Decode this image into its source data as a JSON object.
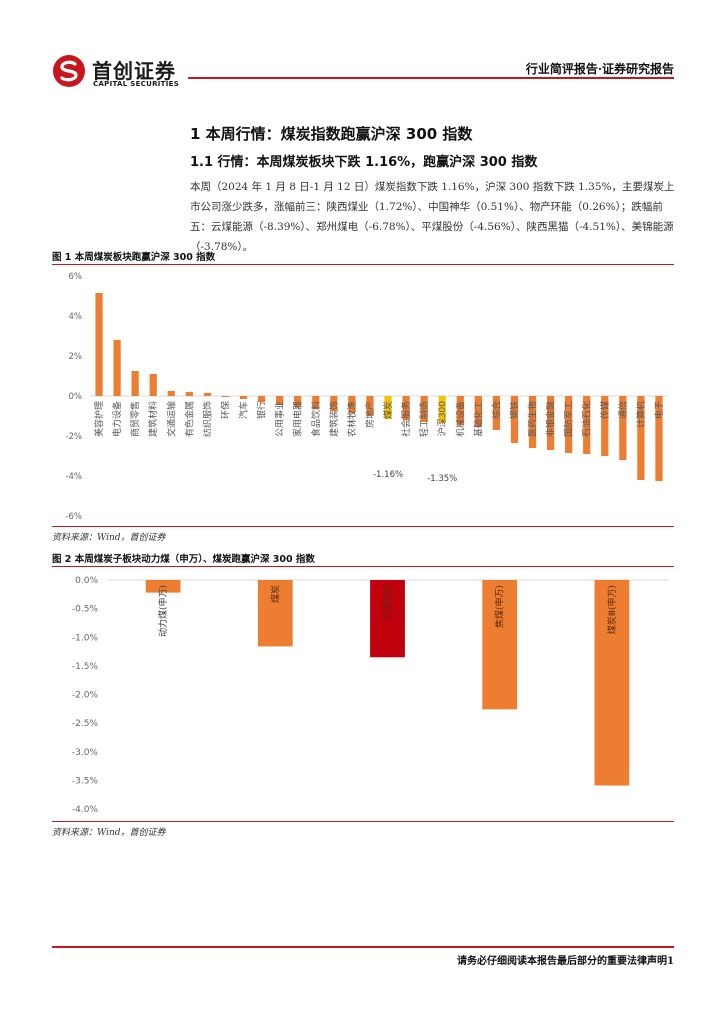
{
  "header": {
    "logo_cn": "首创证券",
    "logo_en": "CAPITAL SECURITIES",
    "report_type": "行业简评报告·证券研究报告",
    "colors": {
      "brand_red": "#c8161d"
    }
  },
  "section": {
    "h1": "1 本周行情：煤炭指数跑赢沪深 300 指数",
    "h2": "1.1 行情：本周煤炭板块下跌 1.16%，跑赢沪深 300 指数",
    "paragraph": "本周（2024 年 1 月 8 日-1 月 12 日）煤炭指数下跌 1.16%，沪深 300 指数下跌 1.35%，主要煤炭上市公司涨少跌多，涨幅前三：陕西煤业（1.72%）、中国神华（0.51%）、物产环能（0.26%）；跌幅前五：云煤能源（-8.39%）、郑州煤电（-6.78%）、平煤股份（-4.56%）、陕西黑猫（-4.51%）、美锦能源（-3.78%）。"
  },
  "figure1": {
    "title": "图 1 本周煤炭板块跑赢沪深 300 指数",
    "source": "资料来源：Wind，首创证券"
  },
  "figure2": {
    "title": "图 2 本周煤炭子板块动力煤（申万）、煤炭跑赢沪深 300 指数",
    "source": "资料来源：Wind，首创证券"
  },
  "chart_data": [
    {
      "type": "bar",
      "ylim": [
        -6,
        6
      ],
      "yticks": [
        "6%",
        "4%",
        "2%",
        "0%",
        "-2%",
        "-4%",
        "-6%"
      ],
      "ytick_values": [
        6,
        4,
        2,
        0,
        -2,
        -4,
        -6
      ],
      "categories": [
        "美容护理",
        "电力设备",
        "商贸零售",
        "建筑材料",
        "交通运输",
        "有色金属",
        "纺织服饰",
        "环保",
        "汽车",
        "银行",
        "公用事业",
        "家用电器",
        "食品饮料",
        "建筑装饰",
        "农林牧渔",
        "房地产",
        "煤炭",
        "社会服务",
        "轻工制造",
        "沪深300",
        "机械设备",
        "基础化工",
        "综合",
        "钢铁",
        "医药生物",
        "非银金融",
        "国防军工",
        "石油石化",
        "传媒",
        "通信",
        "计算机",
        "电子"
      ],
      "values": [
        5.15,
        2.8,
        1.25,
        1.1,
        0.25,
        0.2,
        0.15,
        -0.05,
        -0.15,
        -0.3,
        -0.45,
        -0.55,
        -0.65,
        -0.75,
        -0.85,
        -1.0,
        -1.16,
        -1.2,
        -1.3,
        -1.35,
        -1.45,
        -1.55,
        -1.7,
        -2.35,
        -2.6,
        -2.7,
        -2.85,
        -2.9,
        -3.0,
        -3.2,
        -4.2,
        -4.25
      ],
      "highlight": {
        "煤炭": "#f5c400",
        "沪深300": "#f5c400"
      },
      "data_labels": [
        {
          "category": "煤炭",
          "text": "-1.16%"
        },
        {
          "category": "沪深300",
          "text": "-1.35%"
        }
      ],
      "bar_color": "#ed7d31"
    },
    {
      "type": "bar",
      "ylim": [
        -4,
        0
      ],
      "yticks": [
        "0.0%",
        "-0.5%",
        "-1.0%",
        "-1.5%",
        "-2.0%",
        "-2.5%",
        "-3.0%",
        "-3.5%",
        "-4.0%"
      ],
      "ytick_values": [
        0,
        -0.5,
        -1.0,
        -1.5,
        -2.0,
        -2.5,
        -3.0,
        -3.5,
        -4.0
      ],
      "categories": [
        "动力煤(申万)",
        "煤炭",
        "沪深300",
        "焦煤(申万)",
        "煤炭Ⅲ(申万)"
      ],
      "values": [
        -0.22,
        -1.16,
        -1.35,
        -2.26,
        -3.59
      ],
      "colors": [
        "#ed7d31",
        "#ed7d31",
        "#c0000c",
        "#ed7d31",
        "#ed7d31"
      ]
    }
  ],
  "footer": {
    "disclaimer": "请务必仔细阅读本报告最后部分的重要法律声明1"
  }
}
